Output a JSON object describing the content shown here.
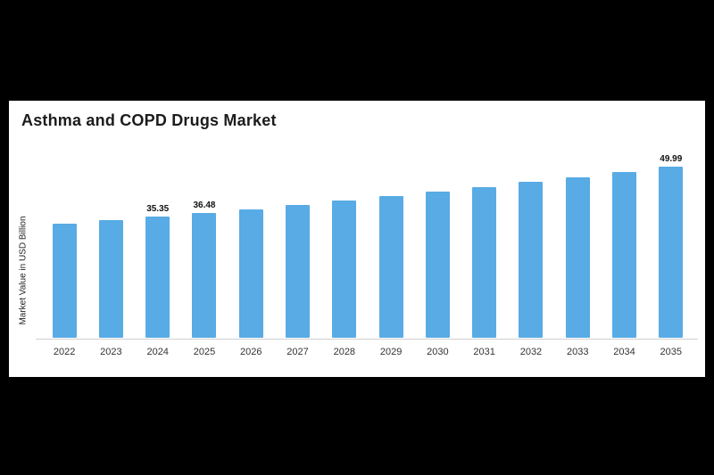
{
  "page": {
    "background_color": "#000000",
    "panel_color": "#ffffff"
  },
  "chart_data": {
    "type": "bar",
    "title": "Asthma and COPD Drugs Market",
    "xlabel": "",
    "ylabel": "Market Value in USD Billion",
    "categories": [
      "2022",
      "2023",
      "2024",
      "2025",
      "2026",
      "2027",
      "2028",
      "2029",
      "2030",
      "2031",
      "2032",
      "2033",
      "2034",
      "2035"
    ],
    "values": [
      33.2,
      34.3,
      35.35,
      36.48,
      37.6,
      38.8,
      40.1,
      41.4,
      42.7,
      44.1,
      45.5,
      46.9,
      48.4,
      49.99
    ],
    "data_labels": [
      "",
      "",
      "35.35",
      "36.48",
      "",
      "",
      "",
      "",
      "",
      "",
      "",
      "",
      "",
      "49.99"
    ],
    "bar_color": "#58ABE4",
    "ylim": [
      0,
      52
    ],
    "grid": false,
    "legend": "none",
    "axis_line_color": "#cfcfcf"
  }
}
